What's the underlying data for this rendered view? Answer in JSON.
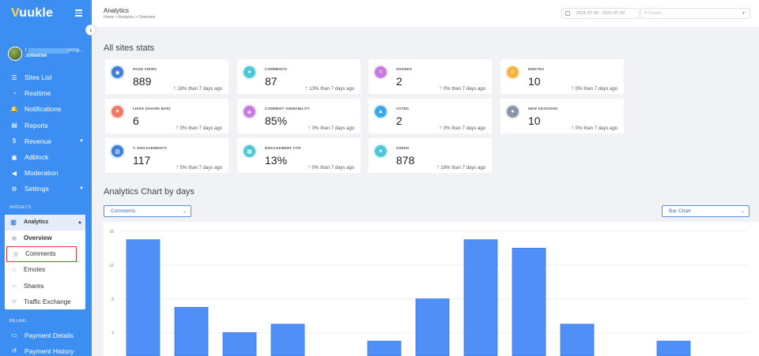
{
  "brand": {
    "logo": "Vuukle"
  },
  "user": {
    "name_top": "t",
    "name_suffix": "ytchg...",
    "name_sub": "JOHNATAN"
  },
  "sidebar": {
    "items": [
      {
        "label": "Sites List",
        "icon": "list-icon",
        "glyph": "☰"
      },
      {
        "label": "Realtime",
        "icon": "clock-icon",
        "glyph": "◔"
      },
      {
        "label": "Notifications",
        "icon": "bell-icon",
        "glyph": "🔔"
      },
      {
        "label": "Reports",
        "icon": "file-icon",
        "glyph": "▤"
      },
      {
        "label": "Revenue",
        "icon": "dollar-icon",
        "glyph": "$"
      },
      {
        "label": "Adblock",
        "icon": "adblock-icon",
        "glyph": "▣"
      },
      {
        "label": "Moderation",
        "icon": "megaphone-icon",
        "glyph": "◀"
      },
      {
        "label": "Settings",
        "icon": "gear-icon",
        "glyph": "⚙"
      }
    ],
    "widgets_label": "WIDGETS",
    "analytics_label": "Analytics",
    "sub_items": [
      {
        "label": "Overview",
        "icon": "eye-icon",
        "glyph": "◉"
      },
      {
        "label": "Comments",
        "icon": "comments-icon",
        "glyph": "◍"
      },
      {
        "label": "Emotes",
        "icon": "emote-icon",
        "glyph": "☺"
      },
      {
        "label": "Shares",
        "icon": "share-icon",
        "glyph": "<"
      },
      {
        "label": "Traffic Exchange",
        "icon": "refresh-icon",
        "glyph": "⟳"
      }
    ],
    "billing_label": "BILLING",
    "billing_items": [
      {
        "label": "Payment Details",
        "icon": "card-icon",
        "glyph": "▭"
      },
      {
        "label": "Payment History",
        "icon": "history-icon",
        "glyph": "↺"
      }
    ]
  },
  "header": {
    "title": "Analytics",
    "breadcrumb": "Home  >  Analytics  >  Overview",
    "date_range": "2021-07-06 - 2021-07-20",
    "user_placeholder": "Fil Users"
  },
  "stats": {
    "title": "All sites stats",
    "change_suffix": "than 7 days ago",
    "cards": [
      {
        "label": "PAGE VIEWS",
        "value": "889",
        "change": "18%",
        "color": "#3d7de0",
        "icon": "eye-icon",
        "glyph": "◉"
      },
      {
        "label": "COMMENTS",
        "value": "87",
        "change": "13%",
        "color": "#4ec8d8",
        "icon": "comments-icon",
        "glyph": "●"
      },
      {
        "label": "SHARES",
        "value": "2",
        "change": "0%",
        "color": "#c77ae0",
        "icon": "share-icon",
        "glyph": "<"
      },
      {
        "label": "EMOTES",
        "value": "10",
        "change": "0%",
        "color": "#f5b342",
        "icon": "emote-icon",
        "glyph": "☺"
      },
      {
        "label": "LIKES (SHARE BAR)",
        "value": "6",
        "change": "0%",
        "color": "#f07a6a",
        "icon": "heart-icon",
        "glyph": "♥"
      },
      {
        "label": "COMMENT VIEWABILITY",
        "value": "85%",
        "change": "0%",
        "color": "#c77ae0",
        "icon": "viewability-icon",
        "glyph": "◈"
      },
      {
        "label": "VOTES",
        "value": "2",
        "change": "0%",
        "color": "#3da8e8",
        "icon": "thumbs-up-icon",
        "glyph": "▲"
      },
      {
        "label": "NEW SESSIONS",
        "value": "10",
        "change": "0%",
        "color": "#8a96a8",
        "icon": "users-icon",
        "glyph": "●"
      },
      {
        "label": "T. ENGAGEMENTS",
        "value": "117",
        "change": "5%",
        "color": "#3d7de0",
        "icon": "bar-chart-icon",
        "glyph": "▥"
      },
      {
        "label": "ENGAGEMENT CTR",
        "value": "13%",
        "change": "0%",
        "color": "#4ec8d8",
        "icon": "ctr-icon",
        "glyph": "▦"
      },
      {
        "label": "USERS",
        "value": "878",
        "change": "18%",
        "color": "#4ec8d8",
        "icon": "user-icon",
        "glyph": "●"
      }
    ]
  },
  "chart_section": {
    "title": "Analytics Chart by days",
    "metric_select": "Comments",
    "type_select": "Bar Chart"
  },
  "chart_data": {
    "type": "bar",
    "title": "",
    "xlabel": "",
    "ylabel": "",
    "color": "#4f8ff7",
    "yticks": [
      "16",
      "12",
      "8",
      "4"
    ],
    "ylim": [
      0,
      16
    ],
    "values": [
      15,
      7,
      4,
      5,
      0,
      3,
      8,
      15,
      14,
      5,
      0,
      3
    ],
    "grid": true
  }
}
